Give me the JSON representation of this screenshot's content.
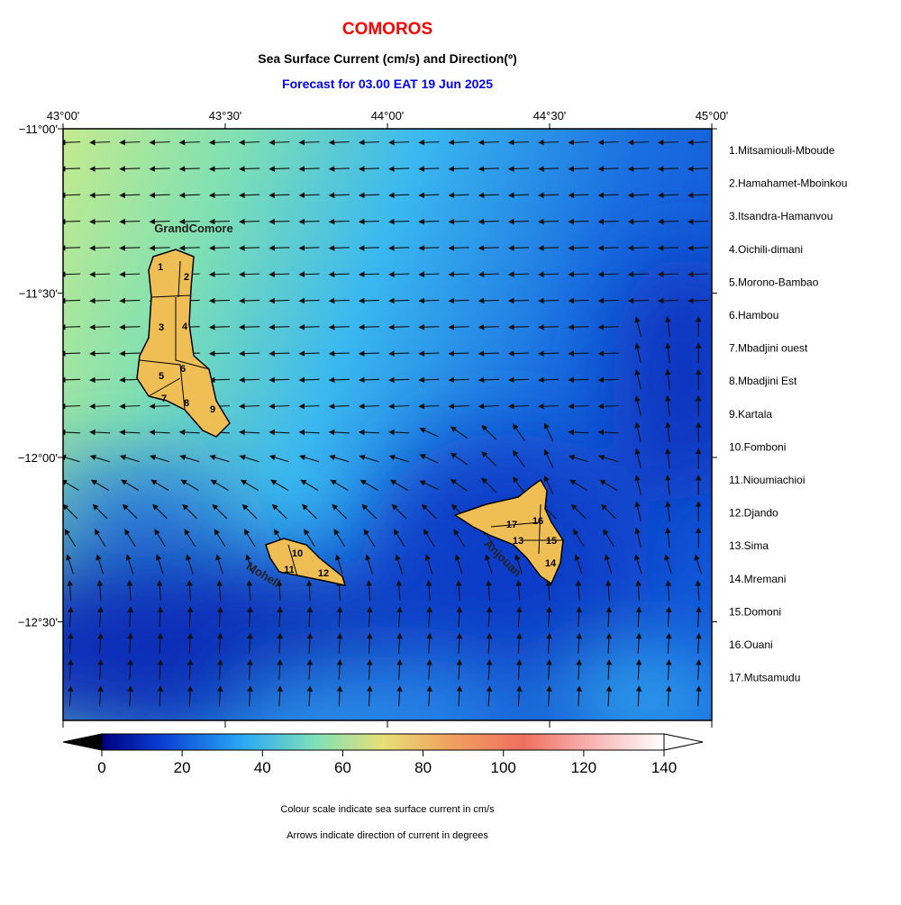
{
  "title": "COMOROS",
  "subtitle": "Sea Surface Current (cm/s) and Direction(º)",
  "forecast": "Forecast for  03.00 EAT 19 Jun 2025",
  "map": {
    "x_tick_labels": [
      "43°00'",
      "43°30'",
      "44°00'",
      "44°30'",
      "45°00'"
    ],
    "y_tick_labels": [
      "−11°00'",
      "−11°30'",
      "−12°00'",
      "−12°30'"
    ],
    "island_names": [
      "GrandComore",
      "Moheli",
      "Anjouan"
    ],
    "region_numbers": [
      "1",
      "2",
      "3",
      "4",
      "5",
      "6",
      "7",
      "8",
      "9",
      "10",
      "11",
      "12",
      "13",
      "14",
      "15",
      "16",
      "17"
    ]
  },
  "regions": [
    "1.Mitsamiouli-Mboude",
    "2.Hamahamet-Mboinkou",
    "3.Itsandra-Hamanvou",
    "4.Oichili-dimani",
    "5.Morono-Bambao",
    "6.Hambou",
    "7.Mbadjini ouest",
    "8.Mbadjini Est",
    "9.Kartala",
    "10.Fomboni",
    "11.Nioumiachioi",
    "12.Djando",
    "13.Sima",
    "14.Mremani",
    "15.Domoni",
    "16.Ouani",
    "17.Mutsamudu"
  ],
  "colorbar": {
    "range": [
      0,
      140
    ],
    "ticks": [
      0,
      20,
      40,
      60,
      80,
      100,
      120,
      140
    ]
  },
  "notes": [
    "Colour scale indicate sea surface current in cm/s",
    "Arrows indicate direction of current in degrees"
  ]
}
